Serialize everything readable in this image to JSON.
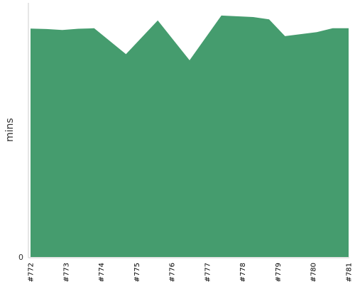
{
  "chart_data": {
    "type": "area",
    "title": "",
    "xlabel": "",
    "ylabel": "mins",
    "categories": [
      "#772",
      "#773",
      "#774",
      "#775",
      "#776",
      "#777",
      "#778",
      "#779",
      "#780",
      "#781"
    ],
    "x": [
      0,
      0.5,
      1,
      1.5,
      2,
      3,
      4,
      5,
      6,
      7,
      7.5,
      8,
      9,
      9.5,
      10
    ],
    "x_note_omitted": null,
    "series": [
      {
        "values": [
          89.9,
          89.7,
          89.3,
          89.8,
          90.0,
          79.8,
          93.1,
          77.4,
          95.0,
          94.4,
          93.5,
          86.9,
          88.5,
          90.0,
          90.0
        ]
      }
    ],
    "yticks": [
      "0"
    ],
    "ylim": [
      0,
      100
    ],
    "grid": false,
    "legend": "none",
    "colors": {
      "fill": "#459c6e",
      "axis": "#cccccc"
    }
  }
}
